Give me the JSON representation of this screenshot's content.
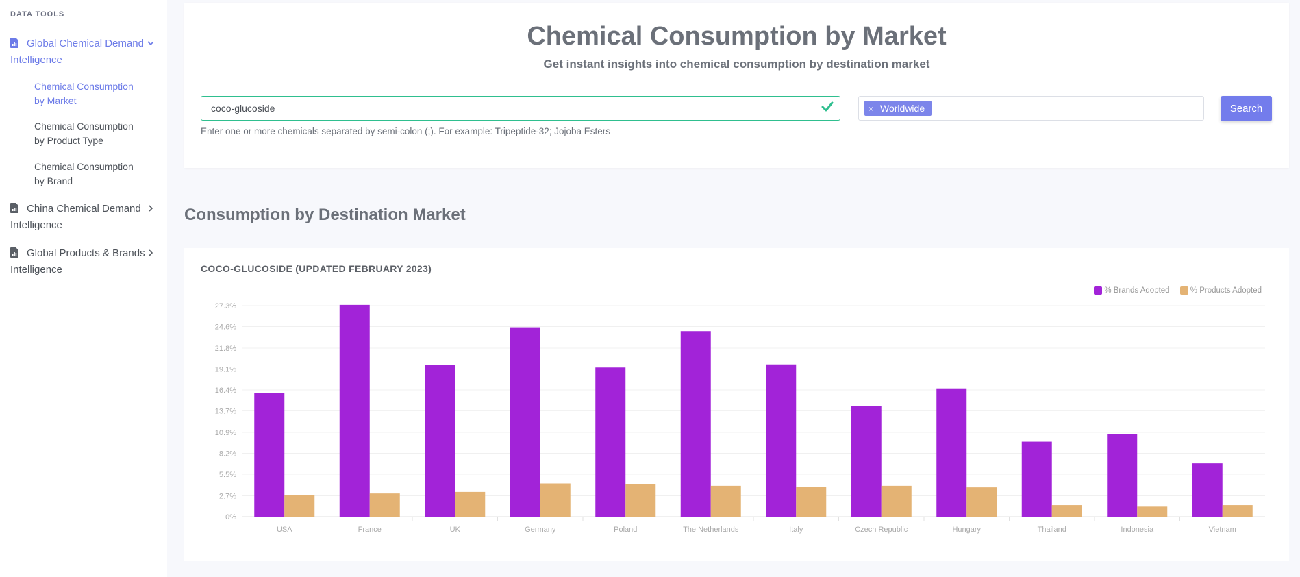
{
  "sidebar": {
    "heading": "DATA TOOLS",
    "groups": [
      {
        "label": "Global Chemical Demand Intelligence",
        "expanded": true,
        "icon": "document-chart-icon",
        "items": [
          {
            "label": "Chemical Consumption by Market",
            "active": true
          },
          {
            "label": "Chemical Consumption by Product Type",
            "active": false
          },
          {
            "label": "Chemical Consumption by Brand",
            "active": false
          }
        ]
      },
      {
        "label": "China Chemical Demand Intelligence",
        "expanded": false,
        "icon": "document-chart-icon"
      },
      {
        "label": "Global Products & Brands Intelligence",
        "expanded": false,
        "icon": "document-chart-icon"
      }
    ]
  },
  "header": {
    "title": "Chemical Consumption by Market",
    "subtitle": "Get instant insights into chemical consumption by destination market"
  },
  "search": {
    "chemical_value": "coco-glucoside",
    "helper": "Enter one or more chemicals separated by semi-colon (;). For example: Tripeptide-32; Jojoba Esters",
    "market_tag": "Worldwide",
    "tag_remove": "×",
    "button_label": "Search"
  },
  "section_title": "Consumption by Destination Market",
  "chart_data": {
    "type": "bar",
    "title": "COCO-GLUCOSIDE (UPDATED FEBRUARY 2023)",
    "categories": [
      "USA",
      "France",
      "UK",
      "Germany",
      "Poland",
      "The Netherlands",
      "Italy",
      "Czech Republic",
      "Hungary",
      "Thailand",
      "Indonesia",
      "Vietnam"
    ],
    "series": [
      {
        "name": "% Brands Adopted",
        "color": "#a223d8",
        "values": [
          16.0,
          27.4,
          19.6,
          24.5,
          19.3,
          24.0,
          19.7,
          14.3,
          16.6,
          9.7,
          10.7,
          6.9
        ]
      },
      {
        "name": "% Products Adopted",
        "color": "#e4b374",
        "values": [
          2.8,
          3.0,
          3.2,
          4.3,
          4.2,
          4.0,
          3.9,
          4.0,
          3.8,
          1.5,
          1.3,
          1.5
        ]
      }
    ],
    "y_ticks": [
      "0%",
      "2.7%",
      "5.5%",
      "8.2%",
      "10.9%",
      "13.7%",
      "16.4%",
      "19.1%",
      "21.8%",
      "24.6%",
      "27.3%"
    ],
    "ylim": [
      0,
      27.3
    ],
    "xlabel": "",
    "ylabel": "",
    "grid": true,
    "legend_position": "top-right"
  }
}
